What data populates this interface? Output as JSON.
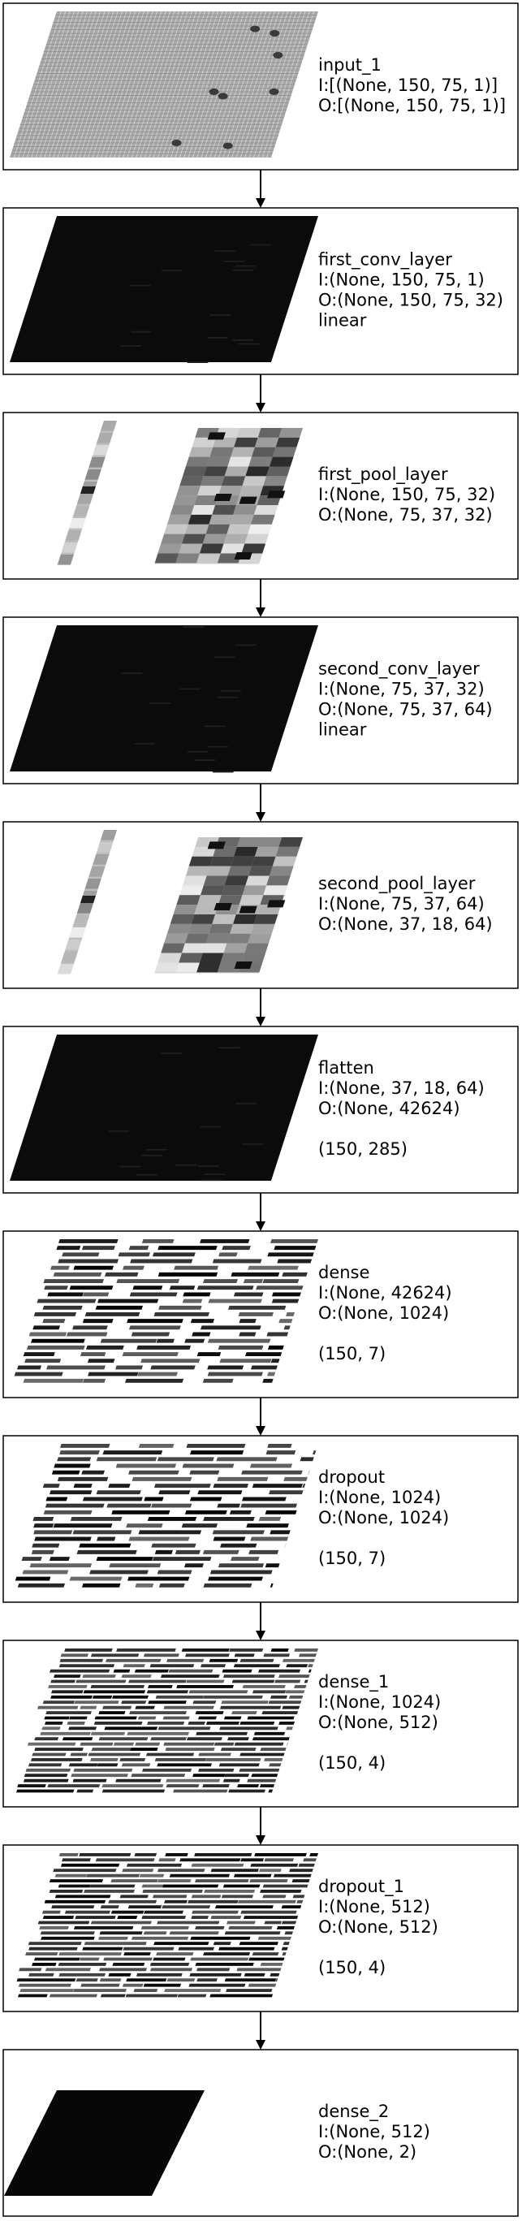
{
  "layers": [
    {
      "name": "input_1",
      "input": "I:[(None, 150, 75, 1)]",
      "output": "O:[(None, 150, 75, 1)]",
      "activation": "",
      "shape": "",
      "pattern": "grid"
    },
    {
      "name": "first_conv_layer",
      "input": "I:(None, 150, 75, 1)",
      "output": "O:(None, 150, 75, 32)",
      "activation": "linear",
      "shape": "",
      "pattern": "dark"
    },
    {
      "name": "first_pool_layer",
      "input": "I:(None, 150, 75, 32)",
      "output": "O:(None, 75, 37, 32)",
      "activation": "",
      "shape": "",
      "pattern": "pool"
    },
    {
      "name": "second_conv_layer",
      "input": "I:(None, 75, 37, 32)",
      "output": "O:(None, 75, 37, 64)",
      "activation": "linear",
      "shape": "",
      "pattern": "dark"
    },
    {
      "name": "second_pool_layer",
      "input": "I:(None, 75, 37, 64)",
      "output": "O:(None, 37, 18, 64)",
      "activation": "",
      "shape": "",
      "pattern": "pool"
    },
    {
      "name": "flatten",
      "input": "I:(None, 37, 18, 64)",
      "output": "O:(None, 42624)",
      "activation": "",
      "shape": "(150, 285)",
      "pattern": "dark"
    },
    {
      "name": "dense",
      "input": "I:(None, 42624)",
      "output": "O:(None, 1024)",
      "activation": "",
      "shape": "(150, 7)",
      "pattern": "stripes-sparse"
    },
    {
      "name": "dropout",
      "input": "I:(None, 1024)",
      "output": "O:(None, 1024)",
      "activation": "",
      "shape": "(150, 7)",
      "pattern": "stripes-sparse"
    },
    {
      "name": "dense_1",
      "input": "I:(None, 1024)",
      "output": "O:(None, 512)",
      "activation": "",
      "shape": "(150, 4)",
      "pattern": "stripes-dense"
    },
    {
      "name": "dropout_1",
      "input": "I:(None, 512)",
      "output": "O:(None, 512)",
      "activation": "",
      "shape": "(150, 4)",
      "pattern": "stripes-dense"
    },
    {
      "name": "dense_2",
      "input": "I:(None, 512)",
      "output": "O:(None, 2)",
      "activation": "",
      "shape": "",
      "pattern": "small-dark"
    }
  ]
}
